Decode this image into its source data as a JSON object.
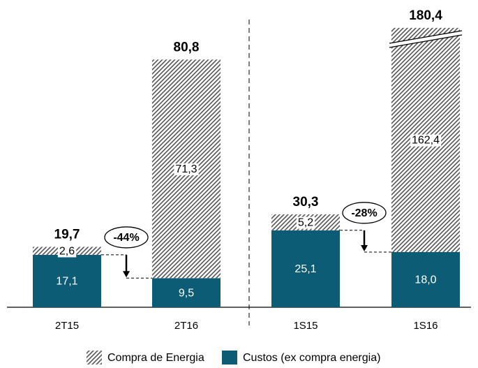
{
  "chart_data": {
    "type": "stacked_bar",
    "categories": [
      "2T15",
      "2T16",
      "1S15",
      "1S16"
    ],
    "series": [
      {
        "name": "Compra de Energia",
        "color": "hatch",
        "values": [
          2.6,
          71.3,
          5.2,
          162.4
        ],
        "value_labels": [
          "2,6",
          "71,3",
          "5,2",
          "162,4"
        ]
      },
      {
        "name": "Custos (ex compra energia)",
        "color": "#0d5c75",
        "values": [
          17.1,
          9.5,
          25.1,
          18.0
        ],
        "value_labels": [
          "17,1",
          "9,5",
          "25,1",
          "18,0"
        ]
      }
    ],
    "totals": [
      19.7,
      80.8,
      30.3,
      180.4
    ],
    "total_labels": [
      "19,7",
      "80,8",
      "30,3",
      "180,4"
    ],
    "annotations": [
      "-44%",
      "-28%"
    ],
    "axis_break": true
  }
}
